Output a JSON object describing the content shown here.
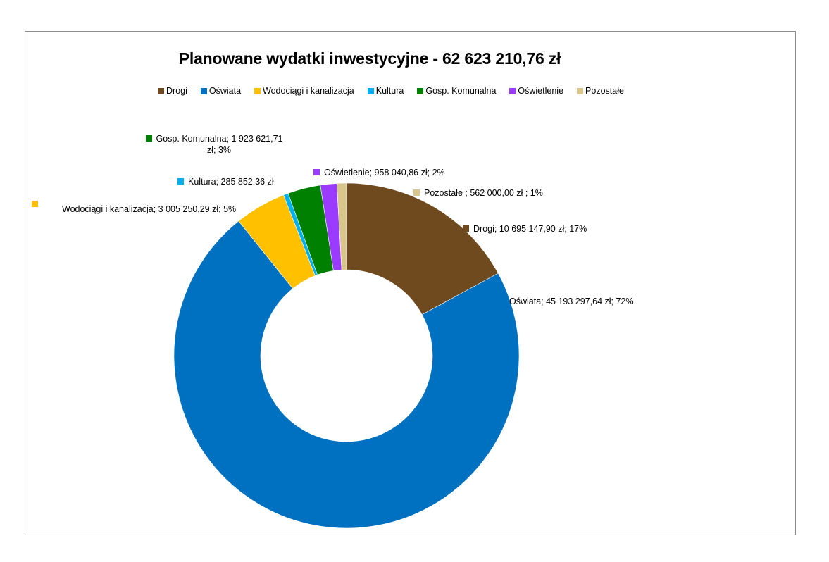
{
  "chart_data": {
    "type": "pie",
    "variant": "doughnut",
    "title": "Planowane wydatki inwestycyjne - 62 623 210,76 zł",
    "total": 62623210.76,
    "currency": "zł",
    "legend_position": "top",
    "categories": [
      "Drogi",
      "Oświata",
      "Wodociągi i kanalizacja",
      "Kultura",
      "Gosp. Komunalna",
      "Oświetlenie",
      "Pozostałe"
    ],
    "values": [
      10695147.9,
      45193297.64,
      3005250.29,
      285852.36,
      1923621.71,
      958040.86,
      562000.0
    ],
    "percent": [
      17,
      72,
      5,
      null,
      3,
      2,
      1
    ],
    "colors": [
      "#6e4a1e",
      "#0070c0",
      "#ffc000",
      "#00b0f0",
      "#008000",
      "#9b3bff",
      "#d9c68a"
    ]
  },
  "title": "Planowane wydatki inwestycyjne - 62 623 210,76 zł",
  "legend": [
    {
      "label": "Drogi",
      "color": "#6e4a1e"
    },
    {
      "label": "Oświata",
      "color": "#0070c0"
    },
    {
      "label": "Wodociągi i kanalizacja",
      "color": "#ffc000"
    },
    {
      "label": "Kultura",
      "color": "#00b0f0"
    },
    {
      "label": "Gosp. Komunalna",
      "color": "#008000"
    },
    {
      "label": "Oświetlenie",
      "color": "#9b3bff"
    },
    {
      "label": "Pozostałe",
      "color": "#d9c68a"
    }
  ],
  "data_labels": {
    "gosp_line1": "Gosp. Komunalna; 1 923 621,71",
    "gosp_line2": "zł; 3%",
    "kultura": "Kultura; 285 852,36 zł",
    "oswietlenie": "Oświetlenie; 958 040,86 zł; 2%",
    "pozostale": "Pozostałe ;  562 000,00 zł ; 1%",
    "wodociagi": "Wodociągi i kanalizacja; 3 005 250,29 zł; 5%",
    "drogi": "Drogi; 10 695 147,90 zł; 17%",
    "oswiata": "Oświata; 45 193 297,64 zł; 72%"
  }
}
